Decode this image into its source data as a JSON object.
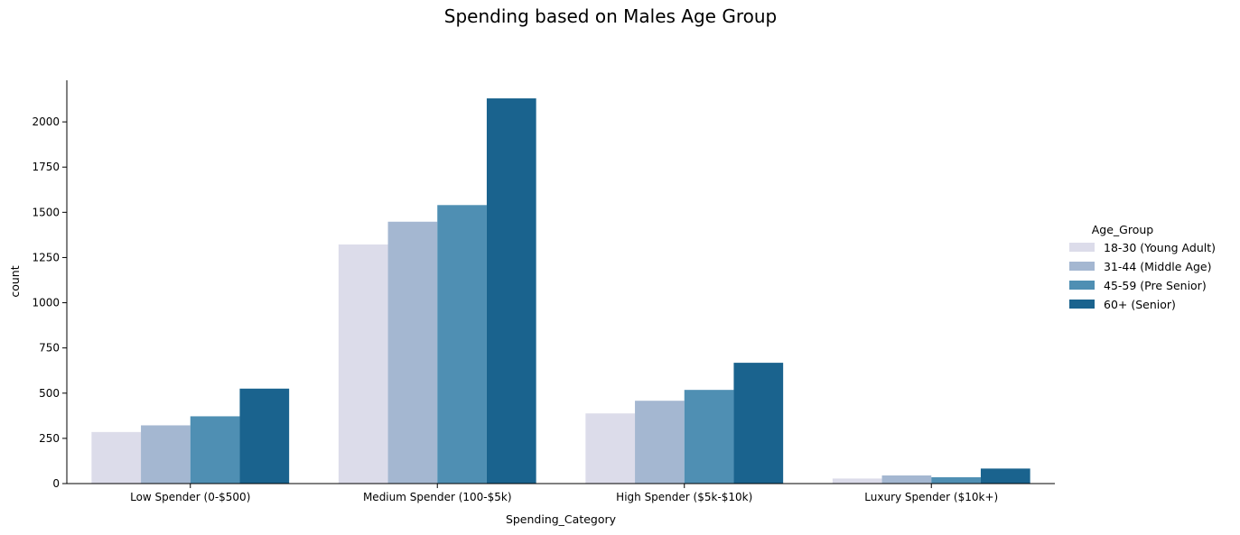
{
  "chart_data": {
    "type": "bar",
    "title": "Spending based on Males Age Group",
    "xlabel": "Spending_Category",
    "ylabel": "count",
    "ylim": [
      0,
      2230
    ],
    "yticks": [
      0,
      250,
      500,
      750,
      1000,
      1250,
      1500,
      1750,
      2000
    ],
    "categories": [
      "Low Spender (0-$500)",
      "Medium Spender (100-$5k)",
      "High Spender ($5k-$10k)",
      "Luxury Spender ($10k+)"
    ],
    "legend": {
      "title": "Age_Group",
      "placement": "right"
    },
    "grid": false,
    "series": [
      {
        "name": "18-30 (Young Adult)",
        "color": "#dcdcea",
        "values": [
          285,
          1322,
          388,
          28
        ]
      },
      {
        "name": "31-44 (Middle Age)",
        "color": "#a4b7d1",
        "values": [
          322,
          1448,
          458,
          45
        ]
      },
      {
        "name": "45-59 (Pre Senior)",
        "color": "#4f8fb3",
        "values": [
          372,
          1540,
          518,
          35
        ]
      },
      {
        "name": "60+ (Senior)",
        "color": "#1a638e",
        "values": [
          525,
          2130,
          668,
          83
        ]
      }
    ]
  }
}
